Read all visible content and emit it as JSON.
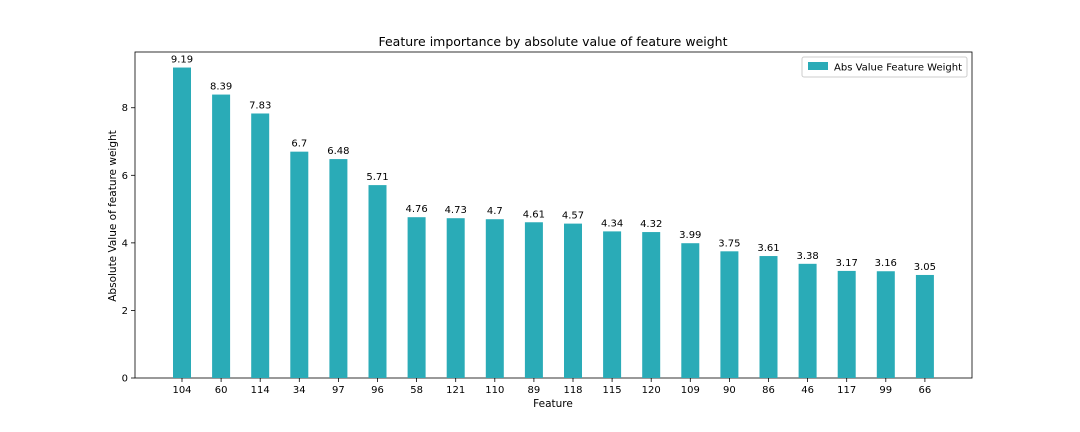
{
  "chart_data": {
    "type": "bar",
    "title": "Feature importance by absolute value of feature weight",
    "xlabel": "Feature",
    "ylabel": "Absolute Value of feature weight",
    "categories": [
      "104",
      "60",
      "114",
      "34",
      "97",
      "96",
      "58",
      "121",
      "110",
      "89",
      "118",
      "115",
      "120",
      "109",
      "90",
      "86",
      "46",
      "117",
      "99",
      "66"
    ],
    "series": [
      {
        "name": "Abs Value Feature Weight",
        "values": [
          9.19,
          8.39,
          7.83,
          6.7,
          6.48,
          5.71,
          4.76,
          4.73,
          4.7,
          4.61,
          4.57,
          4.34,
          4.32,
          3.99,
          3.75,
          3.61,
          3.38,
          3.17,
          3.16,
          3.05
        ],
        "color": "#2aabb7"
      }
    ],
    "ylim": [
      0,
      9.65
    ],
    "yticks": [
      0,
      2,
      4,
      6,
      8
    ],
    "grid": false,
    "legend_position": "top-right"
  }
}
